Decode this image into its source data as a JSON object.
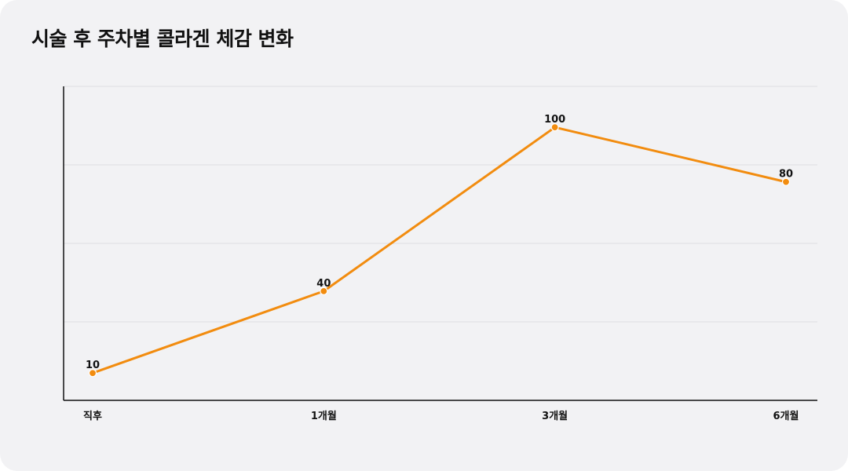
{
  "title": "시술 후 주차별 콜라겐 체감 변화",
  "colors": {
    "line": "#f28c0f",
    "grid": "#dedee2",
    "axis": "#111111",
    "background": "#f2f2f4"
  },
  "chart_data": {
    "type": "line",
    "title": "시술 후 주차별 콜라겐 체감 변화",
    "categories": [
      "직후",
      "1개월",
      "3개월",
      "6개월"
    ],
    "series": [
      {
        "values": [
          10,
          40,
          100,
          80
        ]
      }
    ],
    "data_labels": [
      "10",
      "40",
      "100",
      "80"
    ],
    "ylim": [
      0,
      115
    ],
    "grid": true,
    "y_tick_labels_visible": false,
    "legend": "none"
  }
}
